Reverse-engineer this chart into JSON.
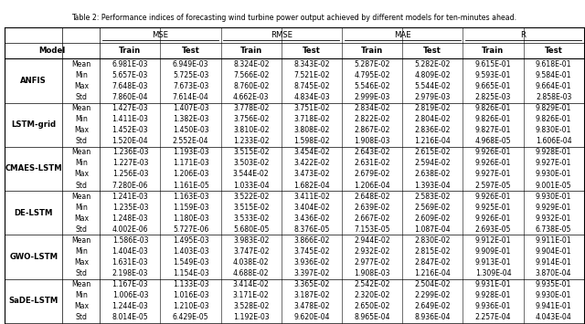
{
  "title": "Table 2: Performance indices of forecasting wind turbine power output achieved by different models for ten-minutes ahead.",
  "models": [
    "ANFIS",
    "LSTM-grid",
    "CMAES-LSTM",
    "DE-LSTM",
    "GWO-LSTM",
    "SaDE-LSTM"
  ],
  "stats": [
    "Mean",
    "Min",
    "Max",
    "Std"
  ],
  "data": {
    "ANFIS": {
      "Mean": [
        "6.981E-03",
        "6.949E-03",
        "8.324E-02",
        "8.343E-02",
        "5.287E-02",
        "5.282E-02",
        "9.615E-01",
        "9.618E-01"
      ],
      "Min": [
        "5.657E-03",
        "5.725E-03",
        "7.566E-02",
        "7.521E-02",
        "4.795E-02",
        "4.809E-02",
        "9.593E-01",
        "9.584E-01"
      ],
      "Max": [
        "7.648E-03",
        "7.673E-03",
        "8.760E-02",
        "8.745E-02",
        "5.546E-02",
        "5.544E-02",
        "9.665E-01",
        "9.664E-01"
      ],
      "Std": [
        "7.860E-04",
        "7.614E-04",
        "4.662E-03",
        "4.834E-03",
        "2.999E-03",
        "2.979E-03",
        "2.825E-03",
        "2.858E-03"
      ]
    },
    "LSTM-grid": {
      "Mean": [
        "1.427E-03",
        "1.407E-03",
        "3.778E-02",
        "3.751E-02",
        "2.834E-02",
        "2.819E-02",
        "9.826E-01",
        "9.829E-01"
      ],
      "Min": [
        "1.411E-03",
        "1.382E-03",
        "3.756E-02",
        "3.718E-02",
        "2.822E-02",
        "2.804E-02",
        "9.826E-01",
        "9.826E-01"
      ],
      "Max": [
        "1.452E-03",
        "1.450E-03",
        "3.810E-02",
        "3.808E-02",
        "2.867E-02",
        "2.836E-02",
        "9.827E-01",
        "9.830E-01"
      ],
      "Std": [
        "1.520E-04",
        "2.552E-04",
        "1.233E-02",
        "1.598E-02",
        "1.908E-03",
        "1.216E-04",
        "4.968E-05",
        "1.606E-04"
      ]
    },
    "CMAES-LSTM": {
      "Mean": [
        "1.236E-03",
        "1.193E-03",
        "3.515E-02",
        "3.454E-02",
        "2.643E-02",
        "2.615E-02",
        "9.926E-01",
        "9.928E-01"
      ],
      "Min": [
        "1.227E-03",
        "1.171E-03",
        "3.503E-02",
        "3.422E-02",
        "2.631E-02",
        "2.594E-02",
        "9.926E-01",
        "9.927E-01"
      ],
      "Max": [
        "1.256E-03",
        "1.206E-03",
        "3.544E-02",
        "3.473E-02",
        "2.679E-02",
        "2.638E-02",
        "9.927E-01",
        "9.930E-01"
      ],
      "Std": [
        "7.280E-06",
        "1.161E-05",
        "1.033E-04",
        "1.682E-04",
        "1.206E-04",
        "1.393E-04",
        "2.597E-05",
        "9.001E-05"
      ]
    },
    "DE-LSTM": {
      "Mean": [
        "1.241E-03",
        "1.163E-03",
        "3.522E-02",
        "3.411E-02",
        "2.648E-02",
        "2.583E-02",
        "9.926E-01",
        "9.930E-01"
      ],
      "Min": [
        "1.235E-03",
        "1.159E-03",
        "3.515E-02",
        "3.404E-02",
        "2.639E-02",
        "2.569E-02",
        "9.925E-01",
        "9.929E-01"
      ],
      "Max": [
        "1.248E-03",
        "1.180E-03",
        "3.533E-02",
        "3.436E-02",
        "2.667E-02",
        "2.609E-02",
        "9.926E-01",
        "9.932E-01"
      ],
      "Std": [
        "4.002E-06",
        "5.727E-06",
        "5.680E-05",
        "8.376E-05",
        "7.153E-05",
        "1.087E-04",
        "2.693E-05",
        "6.738E-05"
      ]
    },
    "GWO-LSTM": {
      "Mean": [
        "1.586E-03",
        "1.495E-03",
        "3.983E-02",
        "3.866E-02",
        "2.944E-02",
        "2.830E-02",
        "9.912E-01",
        "9.911E-01"
      ],
      "Min": [
        "1.404E-03",
        "1.403E-03",
        "3.747E-02",
        "3.745E-02",
        "2.932E-02",
        "2.815E-02",
        "9.909E-01",
        "9.904E-01"
      ],
      "Max": [
        "1.631E-03",
        "1.549E-03",
        "4.038E-02",
        "3.936E-02",
        "2.977E-02",
        "2.847E-02",
        "9.913E-01",
        "9.914E-01"
      ],
      "Std": [
        "2.198E-03",
        "1.154E-03",
        "4.688E-02",
        "3.397E-02",
        "1.908E-03",
        "1.216E-04",
        "1.309E-04",
        "3.870E-04"
      ]
    },
    "SaDE-LSTM": {
      "Mean": [
        "1.167E-03",
        "1.133E-03",
        "3.414E-02",
        "3.365E-02",
        "2.542E-02",
        "2.504E-02",
        "9.931E-01",
        "9.935E-01"
      ],
      "Min": [
        "1.006E-03",
        "1.016E-03",
        "3.171E-02",
        "3.187E-02",
        "2.320E-02",
        "2.299E-02",
        "9.928E-01",
        "9.930E-01"
      ],
      "Max": [
        "1.244E-03",
        "1.210E-03",
        "3.528E-02",
        "3.478E-02",
        "2.650E-02",
        "2.649E-02",
        "9.936E-01",
        "9.941E-01"
      ],
      "Std": [
        "8.014E-05",
        "6.429E-05",
        "1.192E-03",
        "9.620E-04",
        "8.965E-04",
        "8.936E-04",
        "2.257E-04",
        "4.043E-04"
      ]
    }
  },
  "fig_width": 6.4,
  "fig_height": 3.55,
  "dpi": 100
}
